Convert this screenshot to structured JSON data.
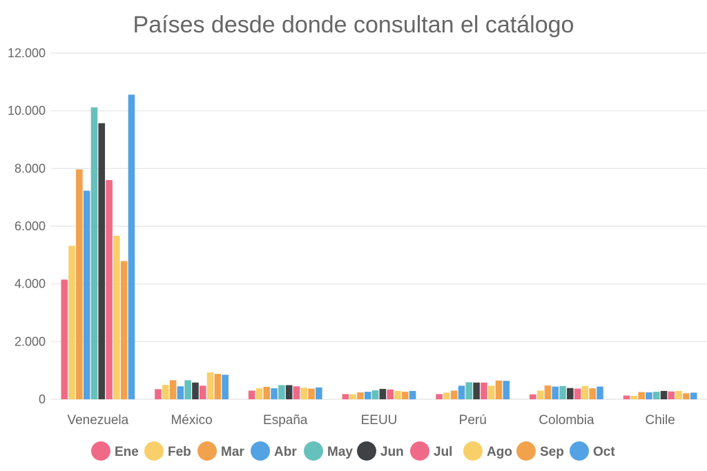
{
  "chart_data": {
    "type": "bar",
    "title": "Países desde donde consultan el catálogo",
    "categories": [
      "Venezuela",
      "México",
      "España",
      "EEUU",
      "Perú",
      "Colombia",
      "Chile"
    ],
    "ylim": [
      0,
      12000
    ],
    "yticks": [
      0,
      2000,
      4000,
      6000,
      8000,
      10000,
      12000
    ],
    "ytick_labels": [
      "0",
      "2.000",
      "4.000",
      "6.000",
      "8.000",
      "10.000",
      "12.000"
    ],
    "grid": true,
    "legend_position": "bottom",
    "series": [
      {
        "name": "Ene",
        "color": "#f06a87",
        "values": [
          4150,
          350,
          300,
          180,
          180,
          170,
          130
        ]
      },
      {
        "name": "Feb",
        "color": "#f9cf6a",
        "values": [
          5320,
          500,
          380,
          170,
          230,
          300,
          120
        ]
      },
      {
        "name": "Mar",
        "color": "#f2a24c",
        "values": [
          7970,
          660,
          430,
          240,
          300,
          480,
          250
        ]
      },
      {
        "name": "Abr",
        "color": "#53a2e4",
        "values": [
          7230,
          450,
          380,
          260,
          470,
          440,
          240
        ]
      },
      {
        "name": "May",
        "color": "#66c0bb",
        "values": [
          10120,
          660,
          490,
          310,
          590,
          460,
          260
        ]
      },
      {
        "name": "Jun",
        "color": "#3f4245",
        "values": [
          9570,
          580,
          490,
          360,
          580,
          390,
          290
        ]
      },
      {
        "name": "Jul",
        "color": "#f06a87",
        "values": [
          7600,
          470,
          450,
          340,
          580,
          370,
          270
        ]
      },
      {
        "name": "Ago",
        "color": "#f9cf6a",
        "values": [
          5670,
          930,
          400,
          290,
          470,
          460,
          290
        ]
      },
      {
        "name": "Sep",
        "color": "#f2a24c",
        "values": [
          4790,
          880,
          370,
          260,
          650,
          380,
          210
        ]
      },
      {
        "name": "Oct",
        "color": "#53a2e4",
        "values": [
          10560,
          850,
          410,
          290,
          640,
          440,
          230
        ]
      }
    ]
  }
}
